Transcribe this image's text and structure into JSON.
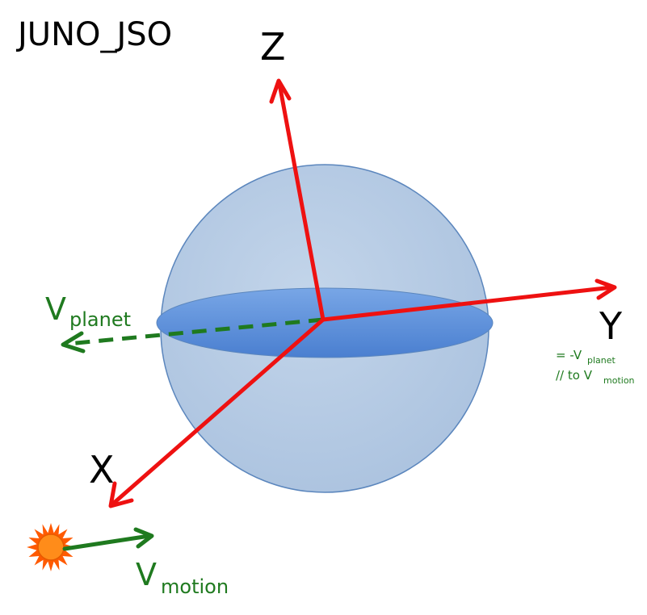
{
  "title": "JUNO_JSO",
  "axes": {
    "z": "Z",
    "y": "Y",
    "x": "X"
  },
  "v_planet": {
    "symbol": "V",
    "subscript": "planet"
  },
  "v_motion": {
    "symbol": "V",
    "subscript": "motion"
  },
  "y_note": {
    "line1_prefix": "= -V",
    "line1_sub": "planet",
    "line2_prefix": "// to V",
    "line2_sub": "motion"
  },
  "colors": {
    "axis_red": "#ee1111",
    "velocity_green": "#1f7a1f",
    "sphere_fill": "#b8cde4",
    "sphere_stroke": "#5b86bd",
    "equator_fill": "#5b8fd8",
    "sun_orange": "#ff5a00",
    "sun_core": "#ff8c1a"
  },
  "icons": {
    "sun": "sun-icon"
  }
}
